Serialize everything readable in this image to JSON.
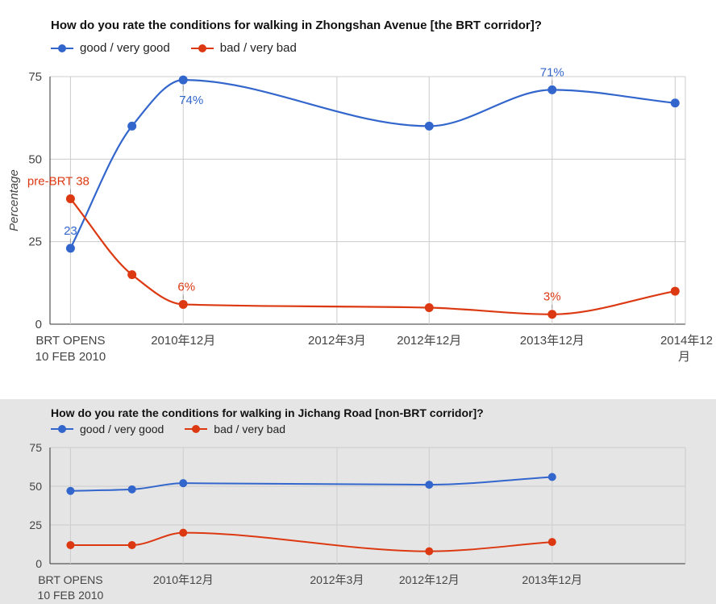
{
  "chart_data": [
    {
      "type": "line",
      "title": "How do you rate the conditions for walking in Zhongshan Avenue [the BRT corridor]?",
      "ylabel": "Percentage",
      "xlabel": "",
      "ylim": [
        0,
        75
      ],
      "yticks": [
        0,
        25,
        50,
        75
      ],
      "grid": true,
      "legend": "top-left",
      "x_ticks": [
        "BRT OPENS\n10 FEB 2010",
        "2010年12月",
        "2012年3月",
        "2012年12月",
        "2013年12月",
        "2014年12\n月"
      ],
      "x": [
        "2010-01",
        "2010-07",
        "2010-12",
        "2012-12",
        "2013-12",
        "2014-12"
      ],
      "series": [
        {
          "name": "good / very good",
          "color": "#3366cc",
          "values": [
            23,
            60,
            74,
            60,
            71,
            67
          ]
        },
        {
          "name": "bad / very bad",
          "color": "#dc3912",
          "values": [
            38,
            15,
            6,
            5,
            3,
            10
          ]
        }
      ],
      "annotations": [
        {
          "series": 0,
          "index": 0,
          "text": "23"
        },
        {
          "series": 0,
          "index": 2,
          "text": "74%"
        },
        {
          "series": 0,
          "index": 4,
          "text": "71%"
        },
        {
          "series": 1,
          "index": 0,
          "text": "pre-BRT 38"
        },
        {
          "series": 1,
          "index": 2,
          "text": "6%"
        },
        {
          "series": 1,
          "index": 4,
          "text": "3%"
        }
      ]
    },
    {
      "type": "line",
      "title": "How do you rate the conditions for walking in Jichang Road [non-BRT corridor]?",
      "ylabel": "",
      "xlabel": "",
      "ylim": [
        0,
        75
      ],
      "yticks": [
        0,
        25,
        50,
        75
      ],
      "grid": true,
      "legend": "top-left",
      "x_ticks": [
        "BRT OPENS\n10 FEB 2010",
        "2010年12月",
        "2012年3月",
        "2012年12月",
        "2013年12月"
      ],
      "x": [
        "2010-01",
        "2010-07",
        "2010-12",
        "2012-12",
        "2013-12"
      ],
      "series": [
        {
          "name": "good / very good",
          "color": "#3366cc",
          "values": [
            47,
            48,
            52,
            51,
            56
          ]
        },
        {
          "name": "bad / very bad",
          "color": "#dc3912",
          "values": [
            12,
            12,
            20,
            8,
            14
          ]
        }
      ],
      "annotations": []
    }
  ]
}
